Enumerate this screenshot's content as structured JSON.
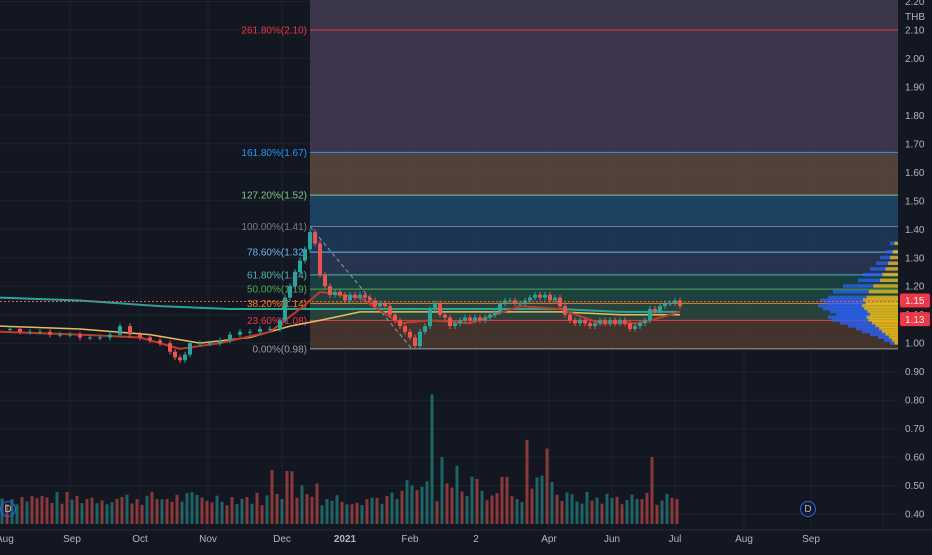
{
  "chart_data": {
    "type": "candlestick",
    "currency": "THB",
    "y_axis_ticks": [
      "2.20",
      "2.10",
      "2.00",
      "1.90",
      "1.80",
      "1.70",
      "1.60",
      "1.50",
      "1.40",
      "1.30",
      "1.20",
      "1.10",
      "1.00",
      "0.90",
      "0.80",
      "0.70",
      "0.60",
      "0.50",
      "0.40"
    ],
    "y_range": [
      0.38,
      2.22
    ],
    "x_axis_labels": [
      "Aug",
      "Sep",
      "Oct",
      "Nov",
      "Dec",
      "2021",
      "Feb",
      "2",
      "Apr",
      "Jun",
      "Jul",
      "Aug",
      "Sep"
    ],
    "price_labels": {
      "last": "1.15",
      "close": "1.13"
    },
    "fibonacci": [
      {
        "label": "261.80%(2.10)",
        "level": 2.1,
        "color": "#f23645"
      },
      {
        "label": "161.80%(1.67)",
        "level": 1.67,
        "color": "#2196f3"
      },
      {
        "label": "127.20%(1.52)",
        "level": 1.52,
        "color": "#81c784"
      },
      {
        "label": "100.00%(1.41)",
        "level": 1.41,
        "color": "#787b86"
      },
      {
        "label": "78.60%(1.32)",
        "level": 1.32,
        "color": "#64b5f6"
      },
      {
        "label": "61.80%(1.24)",
        "level": 1.24,
        "color": "#4db6ac"
      },
      {
        "label": "50.00%(1.19)",
        "level": 1.19,
        "color": "#4caf50"
      },
      {
        "label": "38.20%(1.14)",
        "level": 1.14,
        "color": "#f57f17"
      },
      {
        "label": "23.60%(1.08)",
        "level": 1.08,
        "color": "#f23645"
      },
      {
        "label": "0.00%(0.98)",
        "level": 0.98,
        "color": "#9e9e9e"
      }
    ],
    "price_path": [
      [
        0,
        1.05
      ],
      [
        10,
        1.05
      ],
      [
        20,
        1.04
      ],
      [
        30,
        1.04
      ],
      [
        40,
        1.04
      ],
      [
        50,
        1.03
      ],
      [
        60,
        1.03
      ],
      [
        70,
        1.03
      ],
      [
        80,
        1.02
      ],
      [
        90,
        1.02
      ],
      [
        100,
        1.02
      ],
      [
        110,
        1.03
      ],
      [
        120,
        1.06
      ],
      [
        130,
        1.03
      ],
      [
        140,
        1.02
      ],
      [
        150,
        1.01
      ],
      [
        160,
        1.0
      ],
      [
        170,
        0.97
      ],
      [
        175,
        0.95
      ],
      [
        180,
        0.94
      ],
      [
        185,
        0.96
      ],
      [
        190,
        1.0
      ],
      [
        200,
        1.0
      ],
      [
        210,
        1.0
      ],
      [
        220,
        1.01
      ],
      [
        230,
        1.03
      ],
      [
        240,
        1.04
      ],
      [
        250,
        1.04
      ],
      [
        260,
        1.05
      ],
      [
        270,
        1.05
      ],
      [
        280,
        1.08
      ],
      [
        285,
        1.16
      ],
      [
        290,
        1.2
      ],
      [
        295,
        1.25
      ],
      [
        300,
        1.29
      ],
      [
        305,
        1.33
      ],
      [
        310,
        1.39
      ],
      [
        315,
        1.35
      ],
      [
        320,
        1.24
      ],
      [
        325,
        1.2
      ],
      [
        330,
        1.17
      ],
      [
        335,
        1.18
      ],
      [
        340,
        1.17
      ],
      [
        345,
        1.15
      ],
      [
        350,
        1.17
      ],
      [
        355,
        1.16
      ],
      [
        360,
        1.17
      ],
      [
        365,
        1.16
      ],
      [
        370,
        1.15
      ],
      [
        375,
        1.13
      ],
      [
        380,
        1.14
      ],
      [
        385,
        1.13
      ],
      [
        390,
        1.1
      ],
      [
        395,
        1.08
      ],
      [
        400,
        1.06
      ],
      [
        405,
        1.04
      ],
      [
        410,
        1.02
      ],
      [
        415,
        0.99
      ],
      [
        420,
        1.04
      ],
      [
        425,
        1.06
      ],
      [
        430,
        1.12
      ],
      [
        435,
        1.14
      ],
      [
        440,
        1.1
      ],
      [
        445,
        1.09
      ],
      [
        450,
        1.06
      ],
      [
        455,
        1.07
      ],
      [
        460,
        1.08
      ],
      [
        465,
        1.09
      ],
      [
        470,
        1.08
      ],
      [
        475,
        1.09
      ],
      [
        480,
        1.08
      ],
      [
        485,
        1.09
      ],
      [
        490,
        1.1
      ],
      [
        495,
        1.11
      ],
      [
        500,
        1.14
      ],
      [
        505,
        1.15
      ],
      [
        510,
        1.15
      ],
      [
        515,
        1.14
      ],
      [
        520,
        1.14
      ],
      [
        525,
        1.15
      ],
      [
        530,
        1.16
      ],
      [
        535,
        1.17
      ],
      [
        540,
        1.16
      ],
      [
        545,
        1.17
      ],
      [
        550,
        1.15
      ],
      [
        555,
        1.16
      ],
      [
        560,
        1.13
      ],
      [
        565,
        1.1
      ],
      [
        570,
        1.08
      ],
      [
        575,
        1.07
      ],
      [
        580,
        1.08
      ],
      [
        585,
        1.07
      ],
      [
        590,
        1.06
      ],
      [
        595,
        1.07
      ],
      [
        600,
        1.08
      ],
      [
        605,
        1.07
      ],
      [
        610,
        1.08
      ],
      [
        615,
        1.07
      ],
      [
        620,
        1.08
      ],
      [
        625,
        1.07
      ],
      [
        630,
        1.05
      ],
      [
        635,
        1.06
      ],
      [
        640,
        1.07
      ],
      [
        645,
        1.08
      ],
      [
        650,
        1.12
      ],
      [
        655,
        1.11
      ],
      [
        660,
        1.13
      ],
      [
        665,
        1.14
      ],
      [
        670,
        1.14
      ],
      [
        675,
        1.15
      ],
      [
        680,
        1.13
      ]
    ]
  }
}
